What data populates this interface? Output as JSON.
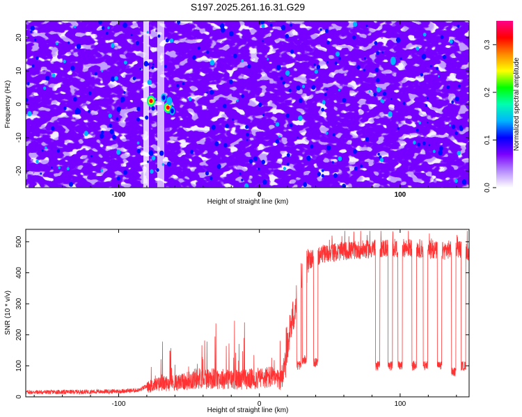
{
  "title": "S197.2025.261.16.31.G29",
  "chart_data": [
    {
      "type": "heatmap",
      "title": "S197.2025.261.16.31.G29",
      "xlabel": "Height of straight line (km)",
      "ylabel": "Frequency (Hz)",
      "xlim": [
        -166,
        149
      ],
      "ylim": [
        -25,
        25
      ],
      "x_ticks": [
        -100,
        0,
        100
      ],
      "x_tick_labels": [
        "-100",
        "0",
        "100"
      ],
      "y_ticks": [
        -20,
        -10,
        0,
        10,
        20
      ],
      "y_tick_labels": [
        "-20",
        "-10",
        "0",
        "10",
        "20"
      ],
      "colorbar": {
        "label": "Normalized spectral amplitude",
        "range": [
          0,
          0.35
        ],
        "ticks": [
          0.0,
          0.1,
          0.2,
          0.3
        ],
        "tick_labels": [
          "0.0",
          "0.1",
          "0.2",
          "0.3"
        ],
        "colors": [
          "#ffffff",
          "#b58bff",
          "#7a00ff",
          "#0000ff",
          "#00b4ff",
          "#00ffb0",
          "#00ff00",
          "#ffff00",
          "#ff8800",
          "#ff0000",
          "#ff0088"
        ]
      },
      "hotspots": [
        {
          "x": -77,
          "y": 1,
          "value": 0.33
        },
        {
          "x": -65,
          "y": -1,
          "value": 0.32
        },
        {
          "x": -68,
          "y": 2,
          "value": 0.12
        },
        {
          "x": -64,
          "y": 1,
          "value": 0.14
        },
        {
          "x": -62,
          "y": -2,
          "value": 0.1
        },
        {
          "x": 95,
          "y": 13,
          "value": 0.13
        }
      ]
    },
    {
      "type": "line",
      "xlabel": "Height of straight line (km)",
      "ylabel": "SNR (10 * v/v)",
      "xlim": [
        -166,
        149
      ],
      "ylim": [
        0,
        540
      ],
      "x_ticks": [
        -100,
        0,
        100
      ],
      "x_tick_labels": [
        "-100",
        "0",
        "100"
      ],
      "y_ticks": [
        0,
        100,
        200,
        300,
        400,
        500
      ],
      "y_tick_labels": [
        "0",
        "100",
        "200",
        "300",
        "400",
        "500"
      ],
      "color": "#ff3333",
      "baseline_profile": [
        [
          -166,
          15
        ],
        [
          -130,
          16
        ],
        [
          -100,
          18
        ],
        [
          -85,
          22
        ],
        [
          -78,
          40
        ],
        [
          -70,
          50
        ],
        [
          -55,
          55
        ],
        [
          -45,
          70
        ],
        [
          -30,
          70
        ],
        [
          -15,
          65
        ],
        [
          0,
          70
        ],
        [
          8,
          75
        ],
        [
          15,
          60
        ],
        [
          20,
          180
        ],
        [
          25,
          280
        ],
        [
          30,
          380
        ],
        [
          35,
          440
        ],
        [
          45,
          460
        ],
        [
          60,
          470
        ],
        [
          75,
          475
        ],
        [
          90,
          480
        ],
        [
          110,
          480
        ],
        [
          130,
          470
        ],
        [
          140,
          480
        ],
        [
          149,
          470
        ]
      ],
      "dropouts": [
        [
          28,
          100
        ],
        [
          32,
          120
        ],
        [
          40,
          110
        ],
        [
          84,
          100
        ],
        [
          93,
          100
        ],
        [
          100,
          100
        ],
        [
          110,
          100
        ],
        [
          118,
          100
        ],
        [
          128,
          100
        ],
        [
          138,
          80
        ],
        [
          145,
          100
        ]
      ]
    }
  ]
}
